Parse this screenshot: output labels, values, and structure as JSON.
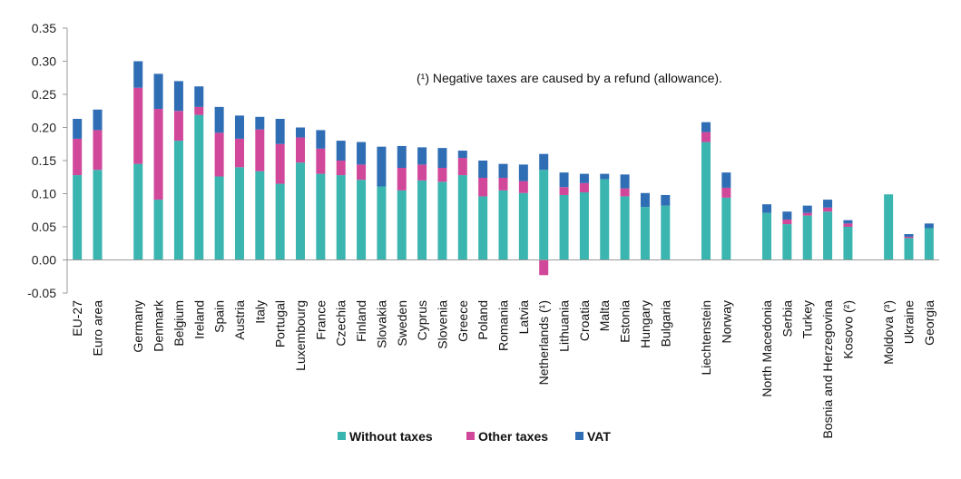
{
  "chart_data": {
    "type": "bar",
    "stacked": true,
    "title": "",
    "xlabel": "",
    "ylabel": "",
    "ylim": [
      -0.05,
      0.35
    ],
    "yticks": [
      -0.05,
      0.0,
      0.05,
      0.1,
      0.15,
      0.2,
      0.25,
      0.3,
      0.35
    ],
    "ytick_labels": [
      "-0.05",
      "0.00",
      "0.05",
      "0.10",
      "0.15",
      "0.20",
      "0.25",
      "0.30",
      "0.35"
    ],
    "note": "(¹) Negative taxes are caused by a refund (allowance).",
    "legend_position": "bottom-center",
    "categories": [
      "EU-27",
      "Euro area",
      "",
      "Germany",
      "Denmark",
      "Belgium",
      "Ireland",
      "Spain",
      "Austria",
      "Italy",
      "Portugal",
      "Luxembourg",
      "France",
      "Czechia",
      "Finland",
      "Slovakia",
      "Sweden",
      "Cyprus",
      "Slovenia",
      "Greece",
      "Poland",
      "Romania",
      "Latvia",
      "Netherlands (¹)",
      "Lithuania",
      "Croatia",
      "Malta",
      "Estonia",
      "Hungary",
      "Bulgaria",
      "",
      "Liechtenstein",
      "Norway",
      "",
      "North Macedonia",
      "Serbia",
      "Turkey",
      "Bosnia and Herzegovina",
      "Kosovo (²)",
      "",
      "Moldova (³)",
      "Ukraine",
      "Georgia"
    ],
    "series": [
      {
        "name": "Without taxes",
        "color": "#3ab5b0",
        "values": [
          0.128,
          0.136,
          null,
          0.145,
          0.091,
          0.18,
          0.219,
          0.126,
          0.14,
          0.134,
          0.115,
          0.147,
          0.13,
          0.128,
          0.121,
          0.111,
          0.105,
          0.12,
          0.118,
          0.128,
          0.096,
          0.105,
          0.101,
          0.136,
          0.098,
          0.102,
          0.122,
          0.096,
          0.08,
          0.082,
          null,
          0.178,
          0.094,
          null,
          0.071,
          0.054,
          0.067,
          0.073,
          0.05,
          null,
          0.099,
          0.033,
          0.048
        ]
      },
      {
        "name": "Other taxes",
        "color": "#d1479a",
        "values": [
          0.055,
          0.06,
          null,
          0.115,
          0.137,
          0.045,
          0.012,
          0.066,
          0.043,
          0.063,
          0.06,
          0.038,
          0.038,
          0.022,
          0.023,
          0.0,
          0.034,
          0.024,
          0.021,
          0.026,
          0.028,
          0.019,
          0.018,
          -0.023,
          0.012,
          0.014,
          0.0,
          0.012,
          0.0,
          0.0,
          null,
          0.015,
          0.015,
          null,
          0.0,
          0.007,
          0.004,
          0.006,
          0.005,
          null,
          0.0,
          0.002,
          0.0
        ]
      },
      {
        "name": "VAT",
        "color": "#2f6eb5",
        "values": [
          0.03,
          0.031,
          null,
          0.04,
          0.053,
          0.045,
          0.031,
          0.039,
          0.035,
          0.019,
          0.038,
          0.015,
          0.028,
          0.03,
          0.034,
          0.06,
          0.033,
          0.026,
          0.03,
          0.011,
          0.026,
          0.021,
          0.025,
          0.024,
          0.022,
          0.014,
          0.008,
          0.021,
          0.021,
          0.016,
          null,
          0.015,
          0.023,
          null,
          0.013,
          0.012,
          0.011,
          0.012,
          0.005,
          null,
          0.0,
          0.004,
          0.007
        ]
      }
    ]
  }
}
